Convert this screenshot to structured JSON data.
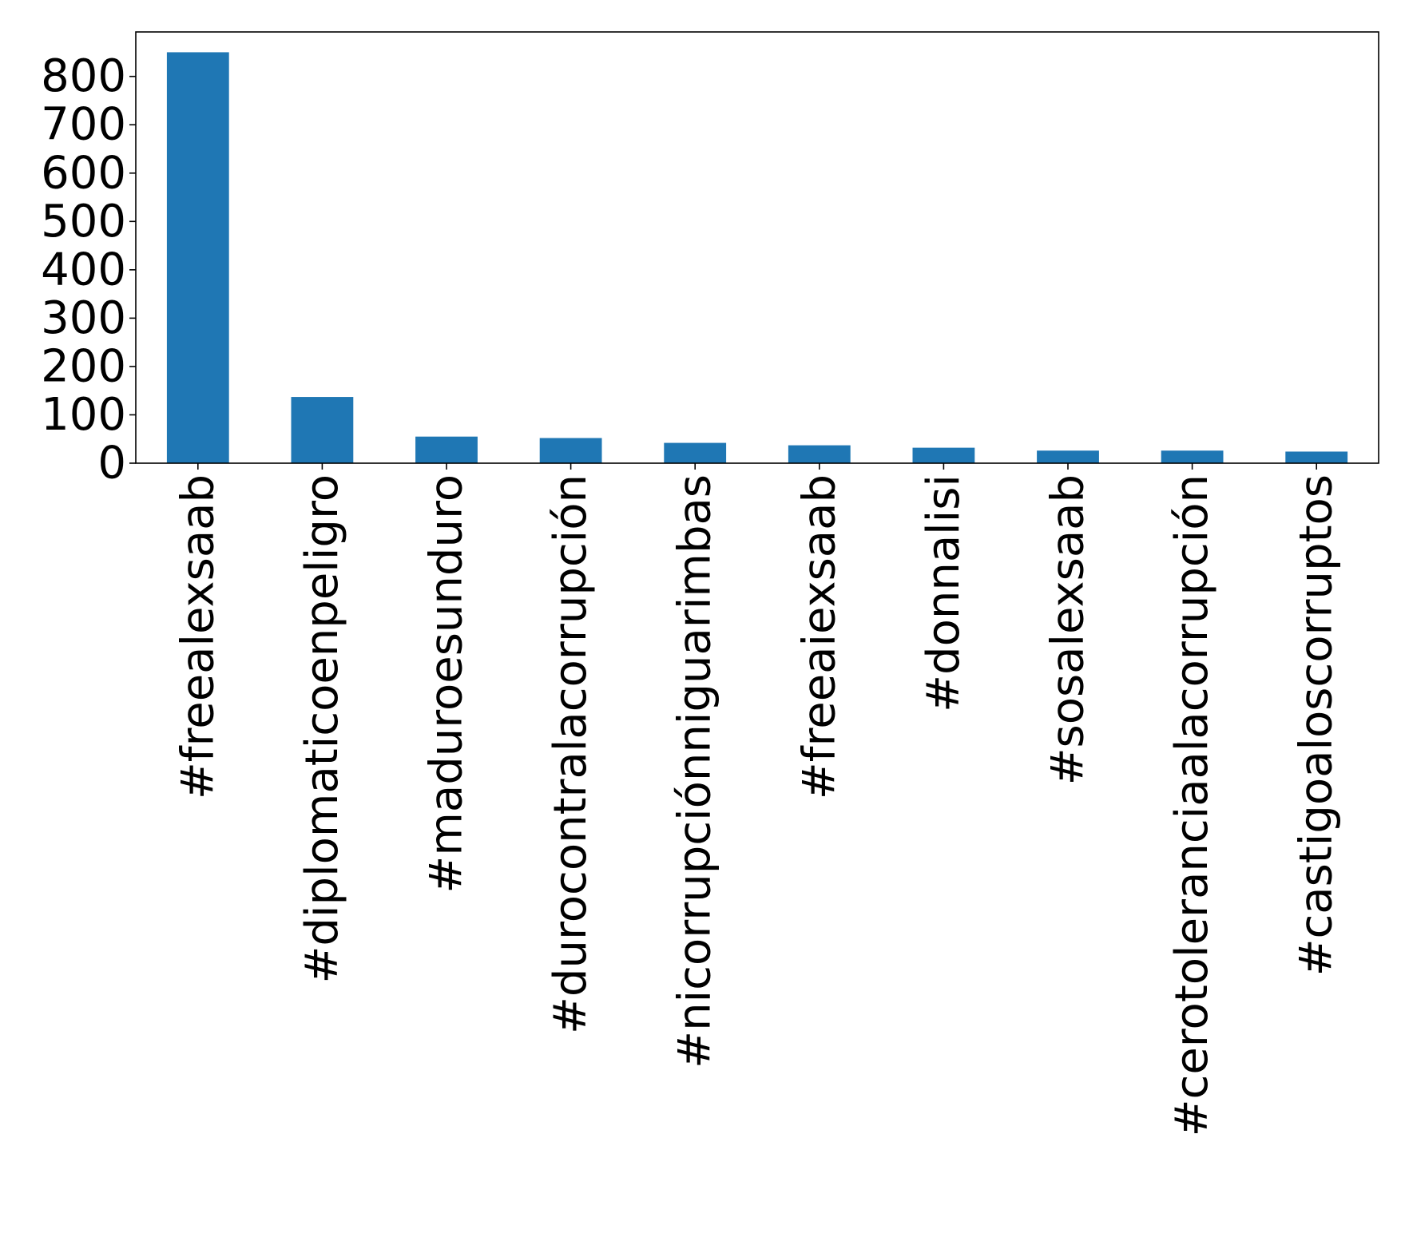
{
  "chart_data": {
    "type": "bar",
    "title": "",
    "xlabel": "",
    "ylabel": "",
    "categories": [
      "#freealexsaab",
      "#diplomaticoenpeligro",
      "#maduroesunduro",
      "#durocontralacorrupción",
      "#nicorrupciónniguarimbas",
      "#freeaiexsaab",
      "#donnalisi",
      "#sosalexsaab",
      "#cerotoleranciaalacorrupción",
      "#castigoaloscorruptos"
    ],
    "values": [
      850,
      137,
      55,
      52,
      42,
      37,
      32,
      26,
      26,
      24
    ],
    "ylim": [
      0,
      892
    ],
    "yticks": [
      0,
      100,
      200,
      300,
      400,
      500,
      600,
      700,
      800
    ],
    "grid": false,
    "legend": "none",
    "colors": {
      "bar": "#1f77b4",
      "axes": "#000000",
      "background": "#ffffff"
    }
  }
}
